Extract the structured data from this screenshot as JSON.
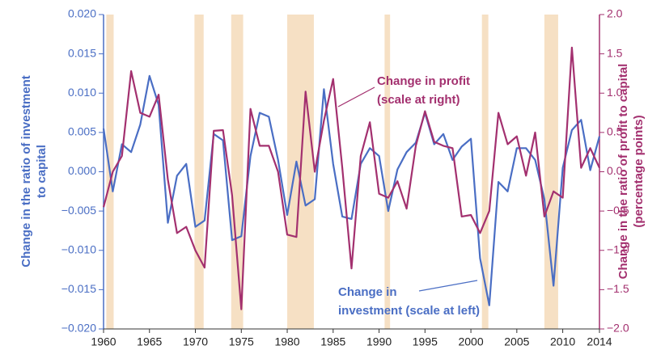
{
  "chart_data": {
    "type": "line",
    "x": [
      1960,
      1961,
      1962,
      1963,
      1964,
      1965,
      1966,
      1967,
      1968,
      1969,
      1970,
      1971,
      1972,
      1973,
      1974,
      1975,
      1976,
      1977,
      1978,
      1979,
      1980,
      1981,
      1982,
      1983,
      1984,
      1985,
      1986,
      1987,
      1988,
      1989,
      1990,
      1991,
      1992,
      1993,
      1994,
      1995,
      1996,
      1997,
      1998,
      1999,
      2000,
      2001,
      2002,
      2003,
      2004,
      2005,
      2006,
      2007,
      2008,
      2009,
      2010,
      2011,
      2012,
      2013,
      2014
    ],
    "series": [
      {
        "name": "Change in investment (scale at left)",
        "color": "#4a6ec4",
        "axis": "y",
        "values": [
          0.0055,
          -0.0025,
          0.0035,
          0.0025,
          0.006,
          0.0122,
          0.0085,
          -0.0065,
          -0.0005,
          0.001,
          -0.007,
          -0.0062,
          0.0048,
          0.004,
          -0.0087,
          -0.0082,
          0.002,
          0.0075,
          0.007,
          0.0015,
          -0.0055,
          0.0013,
          -0.0043,
          -0.0035,
          0.0105,
          0.001,
          -0.0057,
          -0.006,
          0.001,
          0.003,
          0.002,
          -0.005,
          0.0003,
          0.0025,
          0.0037,
          0.0075,
          0.0035,
          0.0048,
          0.0015,
          0.0032,
          0.0042,
          -0.011,
          -0.017,
          -0.0013,
          -0.0025,
          0.003,
          0.003,
          0.0015,
          -0.0035,
          -0.0145,
          0.0005,
          0.0053,
          0.0066,
          0.0002,
          0.0045
        ]
      },
      {
        "name": "Change in profit (scale at right)",
        "color": "#a3306f",
        "axis": "y2",
        "values": [
          -0.45,
          0.0,
          0.2,
          1.28,
          0.75,
          0.7,
          0.98,
          -0.1,
          -0.78,
          -0.7,
          -1.0,
          -1.22,
          0.52,
          0.53,
          -0.3,
          -1.75,
          0.8,
          0.33,
          0.33,
          0.0,
          -0.8,
          -0.83,
          1.02,
          0.0,
          0.65,
          1.18,
          0.05,
          -1.23,
          0.2,
          0.63,
          -0.28,
          -0.33,
          -0.12,
          -0.47,
          0.33,
          0.77,
          0.38,
          0.33,
          0.3,
          -0.57,
          -0.55,
          -0.78,
          -0.5,
          0.75,
          0.35,
          0.45,
          -0.05,
          0.5,
          -0.57,
          -0.25,
          -0.33,
          1.58,
          0.05,
          0.3,
          0.05
        ]
      }
    ],
    "recessions": [
      [
        1960.3,
        1961.1
      ],
      [
        1969.9,
        1970.9
      ],
      [
        1973.9,
        1975.2
      ],
      [
        1980.0,
        1982.9
      ],
      [
        1990.6,
        1991.2
      ],
      [
        2001.2,
        2001.9
      ],
      [
        2008.0,
        2009.5
      ]
    ],
    "recession_color": "#f6e0c4",
    "xlim": [
      1960,
      2014
    ],
    "xticks": [
      1960,
      1965,
      1970,
      1975,
      1980,
      1985,
      1990,
      1995,
      2000,
      2005,
      2010,
      2014
    ],
    "ylim": [
      -0.02,
      0.02
    ],
    "yticks": [
      {
        "value": -0.02,
        "label": "−0.020"
      },
      {
        "value": -0.015,
        "label": "−0.015"
      },
      {
        "value": -0.01,
        "label": "−0.010"
      },
      {
        "value": -0.005,
        "label": "−0.005"
      },
      {
        "value": 0,
        "label": "0.000"
      },
      {
        "value": 0.005,
        "label": "0.005"
      },
      {
        "value": 0.01,
        "label": "0.010"
      },
      {
        "value": 0.015,
        "label": "0.015"
      },
      {
        "value": 0.02,
        "label": "0.020"
      }
    ],
    "y2lim": [
      -2,
      2
    ],
    "y2ticks": [
      {
        "value": -2,
        "label": "−2.0"
      },
      {
        "value": -1.5,
        "label": "−1.5"
      },
      {
        "value": -1,
        "label": "−1.0"
      },
      {
        "value": -0.5,
        "label": "−0.5"
      },
      {
        "value": 0,
        "label": "0.0"
      },
      {
        "value": 0.5,
        "label": "0.5"
      },
      {
        "value": 1,
        "label": "1.0"
      },
      {
        "value": 1.5,
        "label": "1.5"
      },
      {
        "value": 2,
        "label": "2.0"
      }
    ],
    "ylabel": [
      "Change in the ratio of investment",
      "to capital"
    ],
    "y2label": [
      "Change in the ratio of profit to capital",
      "(percentage points)"
    ],
    "annotations": [
      {
        "lines": [
          "Change in profit",
          "(scale at right)"
        ]
      },
      {
        "lines": [
          "Change in",
          "investment (scale at left)"
        ]
      }
    ]
  }
}
